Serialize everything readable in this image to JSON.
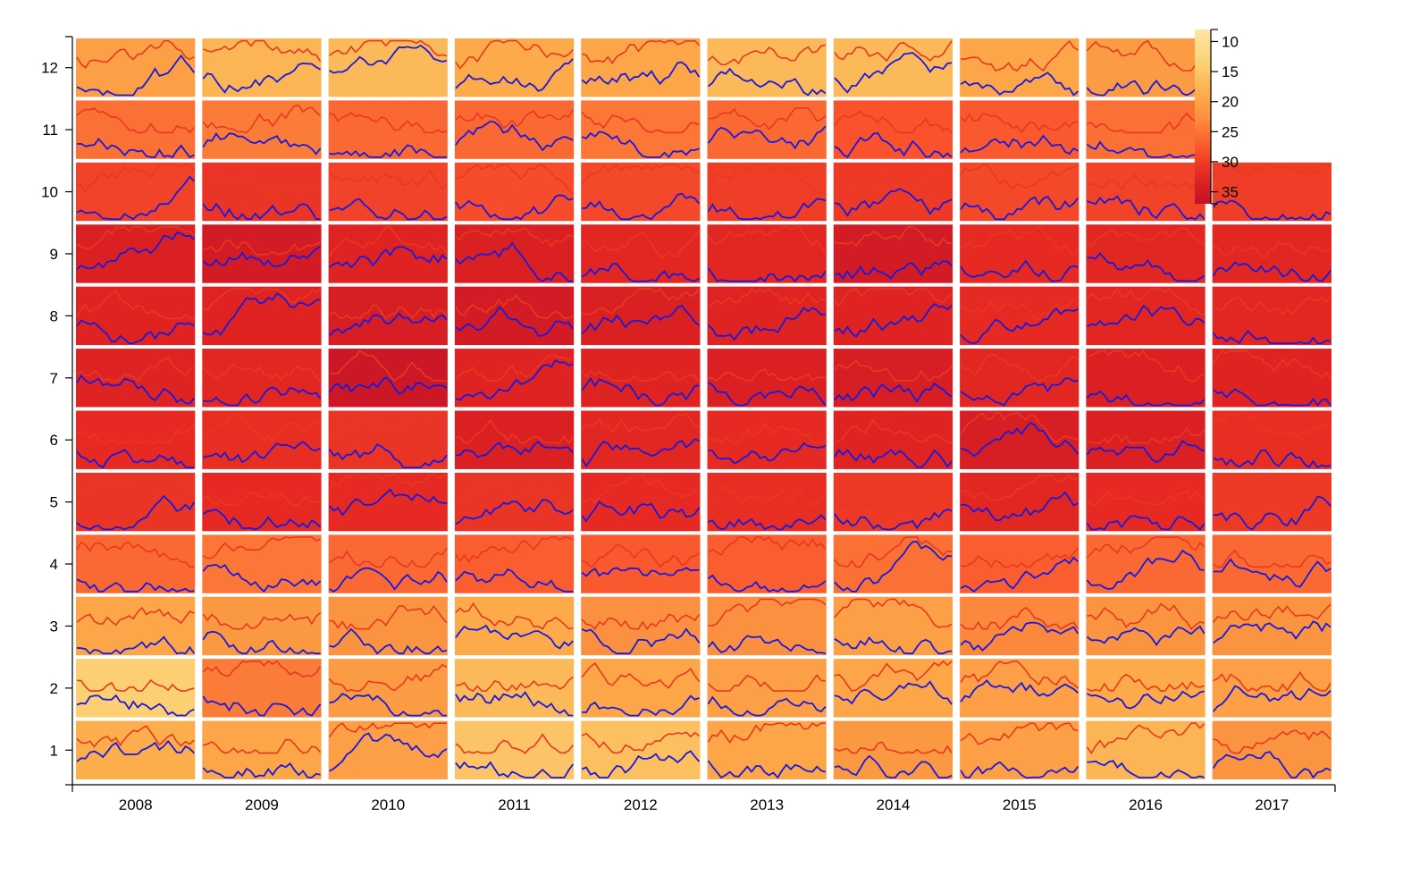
{
  "chart_data": {
    "type": "heatmap",
    "title": "",
    "xlabel": "",
    "ylabel": "",
    "x_categories": [
      "2008",
      "2009",
      "2010",
      "2011",
      "2012",
      "2013",
      "2014",
      "2015",
      "2016",
      "2017"
    ],
    "y_categories": [
      "1",
      "2",
      "3",
      "4",
      "5",
      "6",
      "7",
      "8",
      "9",
      "10",
      "11",
      "12"
    ],
    "cell_series": [
      {
        "name": "max",
        "color": "#e8391f"
      },
      {
        "name": "min",
        "color": "#1a1adb"
      }
    ],
    "color_scale": {
      "scheme": "YlOrRd",
      "domain": [
        8,
        37
      ],
      "ticks": [
        "10",
        "15",
        "20",
        "25",
        "30",
        "35"
      ]
    },
    "cell_values": [
      [
        18.5,
        14.0,
        19.5,
        26.0,
        31.0,
        32.0,
        33.0,
        33.0,
        33.5,
        29.5,
        25.5,
        20.5
      ],
      [
        19.5,
        24.5,
        21.5,
        25.0,
        32.0,
        31.5,
        32.5,
        33.0,
        34.5,
        31.0,
        24.5,
        17.5
      ],
      [
        20.5,
        21.0,
        22.0,
        26.0,
        32.0,
        31.0,
        35.5,
        34.0,
        33.0,
        29.5,
        26.0,
        17.0
      ],
      [
        15.5,
        17.0,
        19.0,
        27.0,
        31.0,
        33.5,
        33.0,
        34.5,
        33.5,
        28.5,
        26.0,
        19.0
      ],
      [
        16.0,
        19.5,
        22.5,
        27.5,
        32.0,
        32.5,
        33.0,
        33.5,
        32.5,
        29.0,
        25.0,
        19.5
      ],
      [
        19.5,
        20.5,
        22.5,
        27.0,
        31.5,
        32.0,
        33.5,
        33.0,
        32.5,
        30.0,
        26.0,
        17.0
      ],
      [
        21.5,
        19.5,
        20.5,
        25.5,
        30.5,
        33.0,
        34.0,
        33.0,
        34.5,
        30.5,
        28.0,
        17.0
      ],
      [
        20.5,
        20.5,
        23.5,
        27.0,
        32.5,
        34.0,
        32.5,
        32.0,
        32.0,
        29.0,
        27.5,
        19.5
      ],
      [
        17.5,
        19.0,
        22.0,
        26.0,
        32.0,
        33.5,
        33.5,
        32.5,
        32.5,
        29.5,
        25.5,
        21.0
      ],
      [
        22.0,
        20.5,
        22.0,
        26.0,
        30.5,
        31.5,
        33.0,
        32.5,
        32.5,
        30.0,
        null,
        null
      ]
    ]
  }
}
